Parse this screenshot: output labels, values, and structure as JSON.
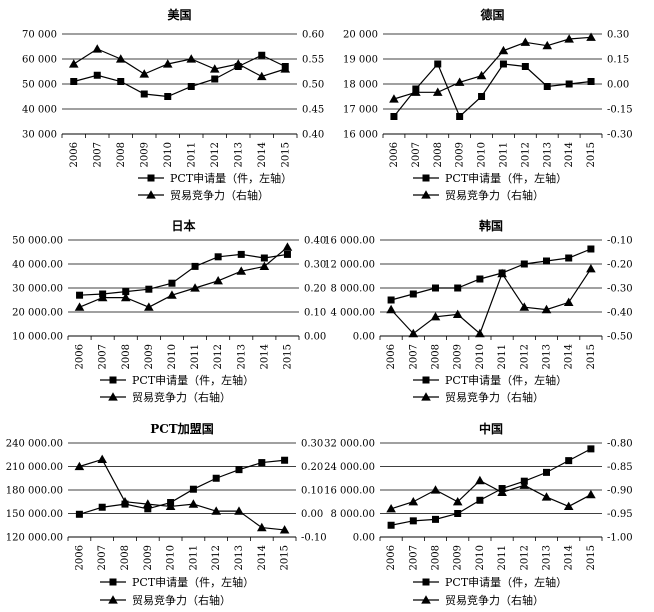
{
  "legend": {
    "pct_label": "PCT申请量（件，左轴）",
    "trade_label": "贸易竞争力（右轴）"
  },
  "colors": {
    "line": "#000000",
    "background": "#ffffff"
  },
  "chart_data": [
    {
      "type": "line",
      "title": "美国",
      "categories": [
        "2006",
        "2007",
        "2008",
        "2009",
        "2010",
        "2011",
        "2012",
        "2013",
        "2014",
        "2015"
      ],
      "left_ylim": [
        30000,
        70000
      ],
      "left_ticks": [
        "30 000",
        "40 000",
        "50 000",
        "60 000",
        "70 000"
      ],
      "right_ylim": [
        0.4,
        0.6
      ],
      "right_ticks": [
        "0.40",
        "0.45",
        "0.50",
        "0.55",
        "0.60"
      ],
      "series": [
        {
          "name": "PCT申请量（件，左轴）",
          "marker": "square",
          "axis": "left",
          "values": [
            51000,
            53500,
            51000,
            46000,
            45000,
            49000,
            52000,
            57000,
            61500,
            57000
          ]
        },
        {
          "name": "贸易竞争力（右轴）",
          "marker": "triangle",
          "axis": "right",
          "values": [
            0.54,
            0.57,
            0.55,
            0.52,
            0.54,
            0.55,
            0.53,
            0.54,
            0.515,
            0.53
          ]
        }
      ]
    },
    {
      "type": "line",
      "title": "德国",
      "categories": [
        "2006",
        "2007",
        "2008",
        "2009",
        "2010",
        "2011",
        "2012",
        "2013",
        "2014",
        "2015"
      ],
      "left_ylim": [
        16000,
        20000
      ],
      "left_ticks": [
        "16 000",
        "17 000",
        "18 000",
        "19 000",
        "20 000"
      ],
      "right_ylim": [
        -0.3,
        0.3
      ],
      "right_ticks": [
        "-0.30",
        "-0.15",
        "0.00",
        "0.15",
        "0.30"
      ],
      "series": [
        {
          "name": "PCT申请量（件，左轴）",
          "marker": "square",
          "axis": "left",
          "values": [
            16700,
            17800,
            18800,
            16700,
            17500,
            18800,
            18700,
            17900,
            18000,
            18100
          ]
        },
        {
          "name": "贸易竞争力（右轴）",
          "marker": "triangle",
          "axis": "right",
          "values": [
            -0.09,
            -0.05,
            -0.05,
            0.01,
            0.05,
            0.2,
            0.25,
            0.23,
            0.27,
            0.28
          ]
        }
      ]
    },
    {
      "type": "line",
      "title": "日本",
      "categories": [
        "2006",
        "2007",
        "2008",
        "2009",
        "2010",
        "2011",
        "2012",
        "2013",
        "2014",
        "2015"
      ],
      "left_ylim": [
        10000,
        50000
      ],
      "left_ticks": [
        "10 000.00",
        "20 000.00",
        "30 000.00",
        "40 000.00",
        "50 000.00"
      ],
      "right_ylim": [
        0.0,
        0.4
      ],
      "right_ticks": [
        "0.00",
        "0.10",
        "0.20",
        "0.30",
        "0.40"
      ],
      "series": [
        {
          "name": "PCT申请量（件，左轴）",
          "marker": "square",
          "axis": "left",
          "values": [
            27000,
            27500,
            28500,
            29500,
            32000,
            39000,
            43000,
            44000,
            42500,
            44000
          ]
        },
        {
          "name": "贸易竞争力（右轴）",
          "marker": "triangle",
          "axis": "right",
          "values": [
            0.12,
            0.16,
            0.16,
            0.12,
            0.17,
            0.2,
            0.23,
            0.27,
            0.29,
            0.37
          ]
        }
      ]
    },
    {
      "type": "line",
      "title": "韩国",
      "categories": [
        "2006",
        "2007",
        "2008",
        "2009",
        "2010",
        "2011",
        "2012",
        "2013",
        "2014",
        "2015"
      ],
      "left_ylim": [
        0,
        16000
      ],
      "left_ticks": [
        "0.00",
        "4 000.00",
        "8 000.00",
        "12 000.00",
        "16 000.00"
      ],
      "right_ylim": [
        -0.5,
        -0.1
      ],
      "right_ticks": [
        "-0.50",
        "-0.40",
        "-0.30",
        "-0.20",
        "-0.10"
      ],
      "series": [
        {
          "name": "PCT申请量（件，左轴）",
          "marker": "square",
          "axis": "left",
          "values": [
            6000,
            7000,
            8000,
            8000,
            9500,
            10500,
            12000,
            12500,
            13000,
            14500
          ]
        },
        {
          "name": "贸易竞争力（右轴）",
          "marker": "triangle",
          "axis": "right",
          "values": [
            -0.39,
            -0.49,
            -0.42,
            -0.41,
            -0.49,
            -0.24,
            -0.38,
            -0.39,
            -0.36,
            -0.22
          ]
        }
      ]
    },
    {
      "type": "line",
      "title": "PCT加盟国",
      "categories": [
        "2006",
        "2007",
        "2008",
        "2009",
        "2010",
        "2011",
        "2012",
        "2013",
        "2014",
        "2015"
      ],
      "left_ylim": [
        120000,
        240000
      ],
      "left_ticks": [
        "120 000.00",
        "150 000.00",
        "180 000.00",
        "210 000.00",
        "240 000.00"
      ],
      "right_ylim": [
        -0.1,
        0.3
      ],
      "right_ticks": [
        "-0.10",
        "0.00",
        "0.10",
        "0.20",
        "0.30"
      ],
      "series": [
        {
          "name": "PCT申请量（件，左轴）",
          "marker": "square",
          "axis": "left",
          "values": [
            149000,
            158000,
            162000,
            156000,
            164000,
            181000,
            195000,
            206000,
            215000,
            218000
          ]
        },
        {
          "name": "贸易竞争力（右轴）",
          "marker": "triangle",
          "axis": "right",
          "values": [
            0.2,
            0.23,
            0.05,
            0.04,
            0.03,
            0.04,
            0.01,
            0.01,
            -0.06,
            -0.07
          ]
        }
      ]
    },
    {
      "type": "line",
      "title": "中国",
      "categories": [
        "2006",
        "2007",
        "2008",
        "2009",
        "2010",
        "2011",
        "2012",
        "2013",
        "2014",
        "2015"
      ],
      "left_ylim": [
        0,
        32000
      ],
      "left_ticks": [
        "0.00",
        "8 000.00",
        "16 000.00",
        "24 000.00",
        "32 000.00"
      ],
      "right_ylim": [
        -1.0,
        -0.8
      ],
      "right_ticks": [
        "-1.00",
        "-0.95",
        "-0.90",
        "-0.85",
        "-0.80"
      ],
      "series": [
        {
          "name": "PCT申请量（件，左轴）",
          "marker": "square",
          "axis": "left",
          "values": [
            4000,
            5500,
            6000,
            8000,
            12500,
            16500,
            19000,
            22000,
            26000,
            30000
          ]
        },
        {
          "name": "贸易竞争力（右轴）",
          "marker": "triangle",
          "axis": "right",
          "values": [
            -0.94,
            -0.925,
            -0.9,
            -0.925,
            -0.88,
            -0.905,
            -0.89,
            -0.915,
            -0.935,
            -0.91
          ]
        }
      ]
    }
  ]
}
